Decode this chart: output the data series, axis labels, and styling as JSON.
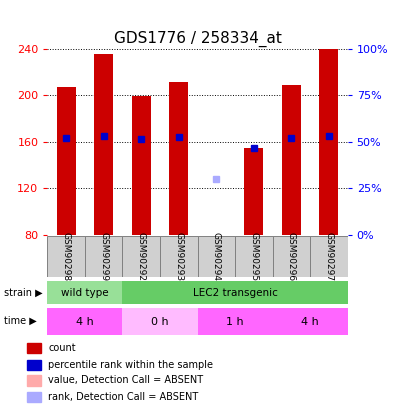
{
  "title": "GDS1776 / 258334_at",
  "samples": [
    "GSM90298",
    "GSM90299",
    "GSM90292",
    "GSM90293",
    "GSM90294",
    "GSM90295",
    "GSM90296",
    "GSM90297"
  ],
  "count_values": [
    207,
    235,
    199,
    211,
    80,
    155,
    209,
    240
  ],
  "rank_values": [
    163,
    165,
    162,
    164,
    null,
    155,
    163,
    165
  ],
  "absent_value": [
    null,
    null,
    null,
    null,
    128,
    null,
    null,
    null
  ],
  "absent_rank": [
    null,
    null,
    null,
    null,
    128,
    null,
    null,
    null
  ],
  "count_is_absent": [
    false,
    false,
    false,
    false,
    true,
    false,
    false,
    false
  ],
  "ylim_left": [
    80,
    240
  ],
  "ylim_right": [
    0,
    100
  ],
  "yticks_left": [
    80,
    120,
    160,
    200,
    240
  ],
  "yticks_right": [
    0,
    25,
    50,
    75,
    100
  ],
  "ytick_labels_right": [
    "0%",
    "25%",
    "50%",
    "75%",
    "100%"
  ],
  "strain_groups": [
    {
      "label": "wild type",
      "start": 0,
      "end": 2,
      "color": "#90ee90"
    },
    {
      "label": "LEC2 transgenic",
      "start": 2,
      "end": 8,
      "color": "#90ee90"
    }
  ],
  "time_groups": [
    {
      "label": "4 h",
      "start": 0,
      "end": 2,
      "color": "#ff80ff"
    },
    {
      "label": "0 h",
      "start": 2,
      "end": 4,
      "color": "#ffb0ff"
    },
    {
      "label": "1 h",
      "start": 4,
      "end": 6,
      "color": "#ff80ff"
    },
    {
      "label": "4 h",
      "start": 6,
      "end": 8,
      "color": "#ff80ff"
    }
  ],
  "bar_color": "#cc0000",
  "absent_bar_color": "#ffaaaa",
  "rank_color": "#0000cc",
  "absent_rank_color": "#aaaaff",
  "bg_color": "#ffffff",
  "plot_bg": "#f0f0f0",
  "legend_items": [
    {
      "color": "#cc0000",
      "label": "count"
    },
    {
      "color": "#0000cc",
      "label": "percentile rank within the sample"
    },
    {
      "color": "#ffaaaa",
      "label": "value, Detection Call = ABSENT"
    },
    {
      "color": "#aaaaff",
      "label": "rank, Detection Call = ABSENT"
    }
  ]
}
